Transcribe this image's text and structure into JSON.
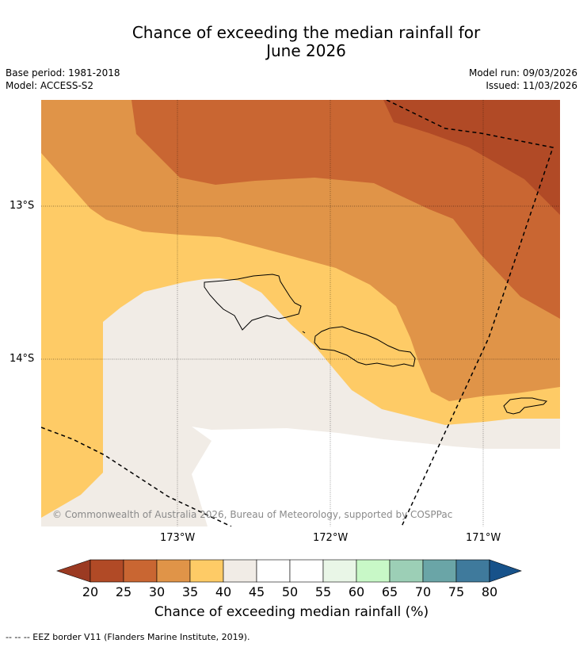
{
  "title_line1": "Chance of exceeding the median rainfall for",
  "title_line2": "June 2026",
  "base_period": "Base period: 1981-2018",
  "model": "Model: ACCESS-S2",
  "model_run": "Model run: 09/03/2026",
  "issued": "Issued: 11/03/2026",
  "latitudes": [
    "13°S",
    "14°S"
  ],
  "longitudes": [
    "173°W",
    "172°W",
    "171°W"
  ],
  "copyright": "© Commonwealth of Australia 2026, Bureau of Meteorology, supported by COSPPac",
  "colorbar": {
    "ticks": [
      "20",
      "25",
      "30",
      "35",
      "40",
      "45",
      "50",
      "55",
      "60",
      "65",
      "70",
      "75",
      "80"
    ],
    "colors": [
      "#9b3a22",
      "#b14a26",
      "#c96632",
      "#e09448",
      "#fecb66",
      "#f1ece6",
      "#ffffff",
      "#ffffff",
      "#e9f6e7",
      "#c8f8c7",
      "#9ccfb6",
      "#6aa5a7",
      "#3f7a9c",
      "#17528a"
    ],
    "label": "Chance of exceeding median rainfall (%)"
  },
  "footnote": "--  --  -- EEZ border V11 (Flanders Marine Institute, 2019)."
}
